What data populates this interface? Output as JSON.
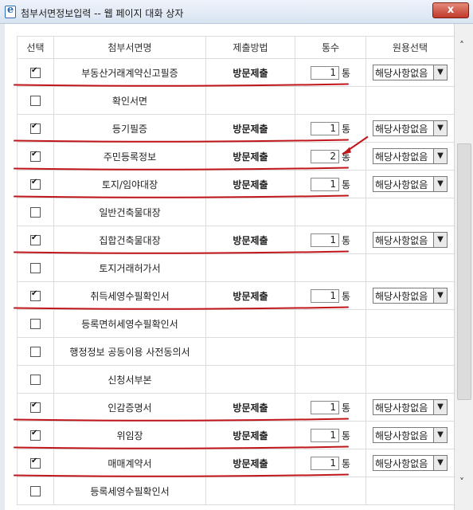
{
  "window": {
    "title": "첨부서면정보입력 -- 웹 페이지 대화 상자",
    "close_label": "x"
  },
  "table": {
    "headers": [
      "선택",
      "첨부서면명",
      "제출방법",
      "통수",
      "원용선택"
    ],
    "rows": [
      {
        "checked": true,
        "name": "부동산거래계약신고필증",
        "method": "방문제출",
        "count": "1",
        "unit": "통",
        "select": "해당사항없음"
      },
      {
        "checked": false,
        "name": "확인서면",
        "method": "",
        "count": "",
        "unit": "",
        "select": ""
      },
      {
        "checked": true,
        "name": "등기필증",
        "method": "방문제출",
        "count": "1",
        "unit": "통",
        "select": "해당사항없음"
      },
      {
        "checked": true,
        "name": "주민등록정보",
        "method": "방문제출",
        "count": "2",
        "unit": "통",
        "select": "해당사항없음"
      },
      {
        "checked": true,
        "name": "토지/임야대장",
        "method": "방문제출",
        "count": "1",
        "unit": "통",
        "select": "해당사항없음"
      },
      {
        "checked": false,
        "name": "일반건축물대장",
        "method": "",
        "count": "",
        "unit": "",
        "select": ""
      },
      {
        "checked": true,
        "name": "집합건축물대장",
        "method": "방문제출",
        "count": "1",
        "unit": "통",
        "select": "해당사항없음"
      },
      {
        "checked": false,
        "name": "토지거래허가서",
        "method": "",
        "count": "",
        "unit": "",
        "select": ""
      },
      {
        "checked": true,
        "name": "취득세영수필확인서",
        "method": "방문제출",
        "count": "1",
        "unit": "통",
        "select": "해당사항없음"
      },
      {
        "checked": false,
        "name": "등록면허세영수필확인서",
        "method": "",
        "count": "",
        "unit": "",
        "select": ""
      },
      {
        "checked": false,
        "name": "행정정보 공동이용 사전동의서",
        "method": "",
        "count": "",
        "unit": "",
        "select": ""
      },
      {
        "checked": false,
        "name": "신청서부본",
        "method": "",
        "count": "",
        "unit": "",
        "select": ""
      },
      {
        "checked": true,
        "name": "인감증명서",
        "method": "방문제출",
        "count": "1",
        "unit": "통",
        "select": "해당사항없음"
      },
      {
        "checked": true,
        "name": "위임장",
        "method": "방문제출",
        "count": "1",
        "unit": "통",
        "select": "해당사항없음"
      },
      {
        "checked": true,
        "name": "매매계약서",
        "method": "방문제출",
        "count": "1",
        "unit": "통",
        "select": "해당사항없음"
      },
      {
        "checked": false,
        "name": "등록세영수필확인서",
        "method": "",
        "count": "",
        "unit": "",
        "select": ""
      }
    ]
  },
  "colors": {
    "annotation": "#c0161b",
    "title_gradient_top": "#eef3fa",
    "title_gradient_bottom": "#d9e4f2",
    "close_button": "#c0392b"
  },
  "icons": {
    "window": "ie-page-icon",
    "close": "close-icon",
    "scroll_up": "chevron-up-icon",
    "scroll_down": "chevron-down-icon",
    "select_arrow": "chevron-down-icon"
  }
}
